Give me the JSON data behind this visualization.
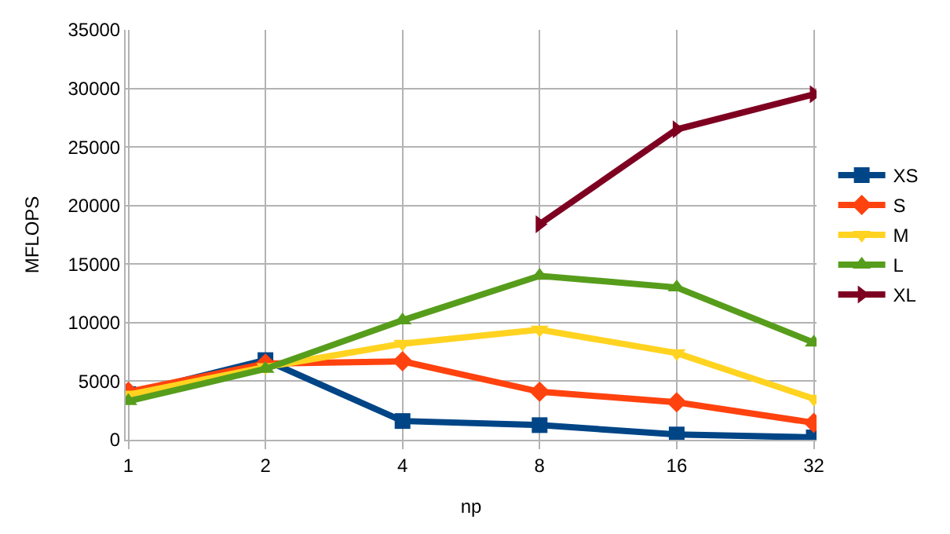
{
  "chart_data": {
    "type": "line",
    "xlabel": "np",
    "ylabel": "MFLOPS",
    "categories": [
      "1",
      "2",
      "4",
      "8",
      "16",
      "32"
    ],
    "series": [
      {
        "name": "XS",
        "color": "#004586",
        "marker": "square",
        "values": [
          3900,
          6800,
          1600,
          1250,
          450,
          200
        ]
      },
      {
        "name": "S",
        "color": "#ff420e",
        "marker": "diamond",
        "values": [
          4100,
          6500,
          6700,
          4100,
          3200,
          1450
        ]
      },
      {
        "name": "M",
        "color": "#ffd320",
        "marker": "triangle-down",
        "values": [
          3850,
          6200,
          8200,
          9400,
          7400,
          3500
        ]
      },
      {
        "name": "L",
        "color": "#579d1c",
        "marker": "triangle",
        "values": [
          3300,
          6050,
          10200,
          14000,
          13000,
          8300
        ]
      },
      {
        "name": "XL",
        "color": "#7e0021",
        "marker": "triangle-right",
        "values": [
          null,
          null,
          null,
          18400,
          26500,
          29500
        ]
      }
    ],
    "ylim": [
      0,
      35000
    ],
    "yticks": [
      0,
      5000,
      10000,
      15000,
      20000,
      25000,
      30000,
      35000
    ],
    "grid": true,
    "legend": "right",
    "line_style": "solid"
  }
}
